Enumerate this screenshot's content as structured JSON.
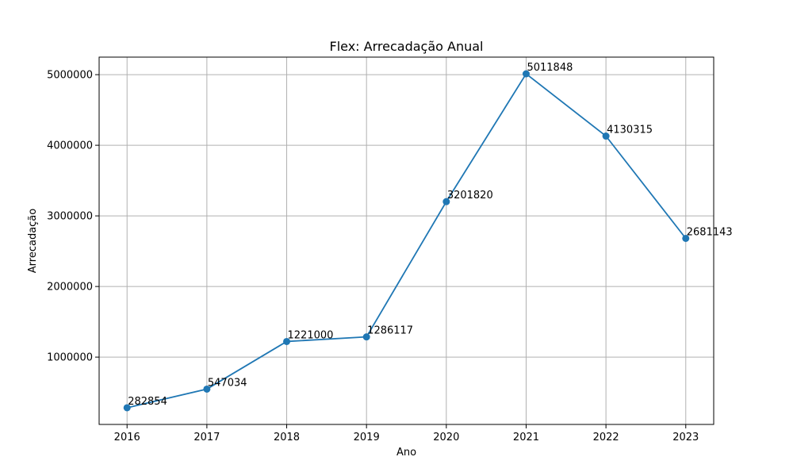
{
  "chart_data": {
    "type": "line",
    "title": "Flex: Arrecadação Anual",
    "xlabel": "Ano",
    "ylabel": "Arrecadação",
    "x": [
      2016,
      2017,
      2018,
      2019,
      2020,
      2021,
      2022,
      2023
    ],
    "series": [
      {
        "values": [
          282854,
          547034,
          1221000,
          1286117,
          3201820,
          5011848,
          4130315,
          2681143
        ]
      }
    ],
    "data_labels": [
      "282854",
      "547034",
      "1221000",
      "1286117",
      "3201820",
      "5011848",
      "4130315",
      "2681143"
    ],
    "x_ticks": [
      "2016",
      "2017",
      "2018",
      "2019",
      "2020",
      "2021",
      "2022",
      "2023"
    ],
    "y_ticks": [
      "1000000",
      "2000000",
      "3000000",
      "4000000",
      "5000000"
    ],
    "y_tick_values": [
      1000000,
      2000000,
      3000000,
      4000000,
      5000000
    ],
    "xlim": [
      2015.65,
      2023.35
    ],
    "ylim": [
      46404,
      5248298
    ],
    "grid": true,
    "line_color": "#1f77b4",
    "grid_color": "#b0b0b0"
  }
}
